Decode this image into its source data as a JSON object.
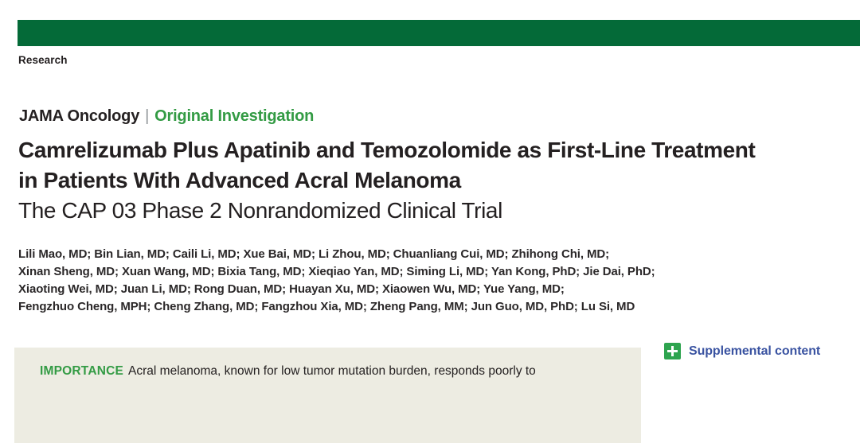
{
  "masthead": {
    "section_label": "Research",
    "bar_color": "#046A38"
  },
  "kicker": {
    "journal": "JAMA Oncology",
    "separator": "|",
    "category": "Original Investigation"
  },
  "title": {
    "lines": [
      "Camrelizumab Plus Apatinib and Temozolomide as First-Line Treatment",
      "in Patients With Advanced Acral Melanoma"
    ],
    "subtitle": "The CAP 03 Phase 2 Nonrandomized Clinical Trial"
  },
  "authors": {
    "lines": [
      "Lili Mao, MD; Bin Lian, MD; Caili Li, MD; Xue Bai, MD; Li Zhou, MD; Chuanliang Cui, MD; Zhihong Chi, MD;",
      "Xinan Sheng, MD; Xuan Wang, MD; Bixia Tang, MD; Xieqiao Yan, MD; Siming Li, MD; Yan Kong, PhD; Jie Dai, PhD;",
      "Xiaoting Wei, MD; Juan Li, MD; Rong Duan, MD; Huayan Xu, MD; Xiaowen Wu, MD; Yue Yang, MD;",
      "Fengzhuo Cheng, MPH; Cheng Zhang, MD; Fangzhou Xia, MD; Zheng Pang, MM; Jun Guo, MD, PhD; Lu Si, MD"
    ]
  },
  "abstract": {
    "importance_label": "IMPORTANCE",
    "importance_text": "Acral melanoma, known for low tumor mutation burden, responds poorly to"
  },
  "supplemental": {
    "icon": "plus-icon",
    "label": "Supplemental content"
  },
  "colors": {
    "masthead_green": "#046A38",
    "accent_green": "#339B44",
    "icon_green": "#2EA44F",
    "link_blue": "#3A53A1",
    "abstract_background": "#EDECE2",
    "text_dark": "#242021"
  }
}
